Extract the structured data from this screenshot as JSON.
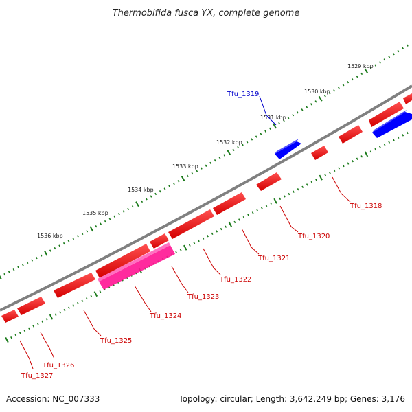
{
  "title": "Thermobifida fusca YX, complete genome",
  "footer": {
    "accession": "Accession: NC_007333",
    "summary": "Topology: circular; Length: 3,642,249 bp; Genes: 3,176"
  },
  "colors": {
    "backbone": "#808080",
    "tick": "#1a7a1a",
    "forward_gene": "#ff0000",
    "reverse_gene": "#0000ff",
    "highlight_gene": "#ff1493",
    "reverse_label": "#0000cc",
    "forward_label": "#cc0000"
  },
  "scale_labels": [
    "1529 kbp",
    "1530 kbp",
    "1531 kbp",
    "1532 kbp",
    "1533 kbp",
    "1534 kbp",
    "1535 kbp",
    "1536 kbp"
  ],
  "gene_labels": [
    {
      "name": "Tfu_1318",
      "strand": "forward"
    },
    {
      "name": "Tfu_1319",
      "strand": "reverse"
    },
    {
      "name": "Tfu_1320",
      "strand": "forward"
    },
    {
      "name": "Tfu_1321",
      "strand": "forward"
    },
    {
      "name": "Tfu_1322",
      "strand": "forward"
    },
    {
      "name": "Tfu_1323",
      "strand": "forward"
    },
    {
      "name": "Tfu_1324",
      "strand": "forward"
    },
    {
      "name": "Tfu_1325",
      "strand": "forward"
    },
    {
      "name": "Tfu_1326",
      "strand": "forward"
    },
    {
      "name": "Tfu_1327",
      "strand": "forward"
    }
  ]
}
